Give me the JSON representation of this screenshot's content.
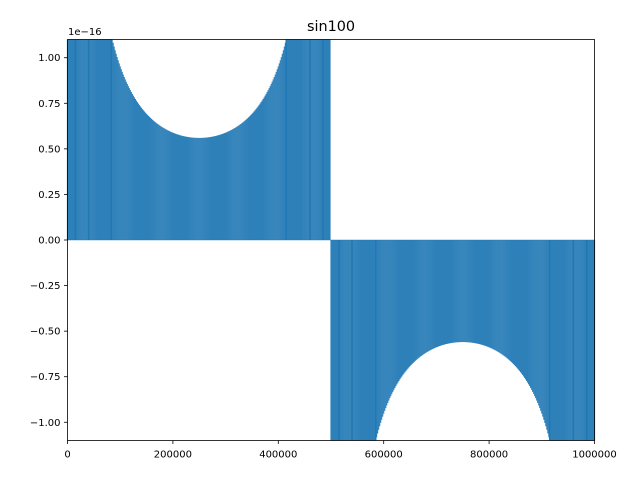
{
  "chart_data": {
    "type": "area",
    "title": "sin100",
    "xlabel": "",
    "ylabel": "",
    "offset_text": "1e−16",
    "xlim": [
      0,
      1000000
    ],
    "ylim": [
      -1.1,
      1.1
    ],
    "y_scale_factor": 1e-16,
    "grid": false,
    "x_ticks": [
      0,
      200000,
      400000,
      600000,
      800000,
      1000000
    ],
    "x_tick_labels": [
      "0",
      "200000",
      "400000",
      "600000",
      "800000",
      "1000000"
    ],
    "y_ticks": [
      -1.0,
      -0.75,
      -0.5,
      -0.25,
      0.0,
      0.25,
      0.5,
      0.75,
      1.0
    ],
    "y_tick_labels": [
      "−1.00",
      "−0.75",
      "−0.50",
      "−0.25",
      "0.00",
      "0.25",
      "0.50",
      "0.75",
      "1.00"
    ],
    "series": [
      {
        "color": "#1f77b4",
        "description_points": [
          {
            "x": 0,
            "y_low": 0.0,
            "y_high": 1.0
          },
          {
            "x": 83000,
            "y_low": 0.0,
            "y_high": 1.1
          },
          {
            "x": 250000,
            "y_low": 0.0,
            "y_high": 0.56
          },
          {
            "x": 415000,
            "y_low": 0.0,
            "y_high": 1.1
          },
          {
            "x": 500000,
            "y_low": 0.0,
            "y_high": 0.0
          },
          {
            "x": 585000,
            "y_low": -1.1,
            "y_high": 0.0
          },
          {
            "x": 750000,
            "y_low": -0.56,
            "y_high": 0.0
          },
          {
            "x": 915000,
            "y_low": -1.1,
            "y_high": 0.0
          },
          {
            "x": 1000000,
            "y_low": -1.0,
            "y_high": 0.0
          }
        ]
      }
    ]
  }
}
